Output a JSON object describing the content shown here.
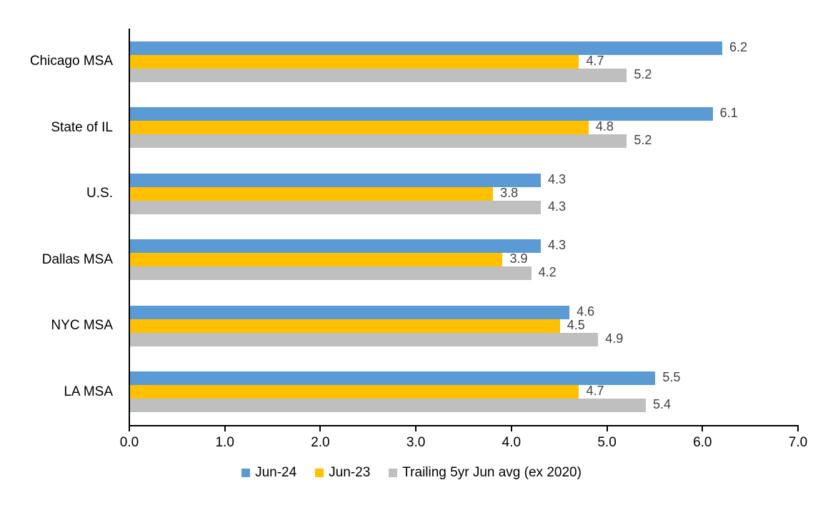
{
  "chart_data": {
    "type": "bar",
    "orientation": "horizontal",
    "title": "",
    "xlabel": "",
    "ylabel": "",
    "categories": [
      "Chicago MSA",
      "State of IL",
      "U.S.",
      "Dallas MSA",
      "NYC MSA",
      "LA MSA"
    ],
    "series": [
      {
        "name": "Jun-24",
        "color": "#5B9BD5",
        "values": [
          6.2,
          6.1,
          4.3,
          4.3,
          4.6,
          5.5
        ]
      },
      {
        "name": "Jun-23",
        "color": "#FFC000",
        "values": [
          4.7,
          4.8,
          3.8,
          3.9,
          4.5,
          4.7
        ]
      },
      {
        "name": "Trailing 5yr Jun avg (ex 2020)",
        "color": "#BFBFBF",
        "values": [
          5.2,
          5.2,
          4.3,
          4.2,
          4.9,
          5.4
        ]
      }
    ],
    "xlim": [
      0.0,
      7.0
    ],
    "x_ticks": [
      "0.0",
      "1.0",
      "2.0",
      "3.0",
      "4.0",
      "5.0",
      "6.0",
      "7.0"
    ],
    "data_labels": true,
    "data_label_decimals": 1,
    "grid": false,
    "legend_position": "bottom",
    "colors": {
      "axis": "#000000",
      "category_text": "#000000",
      "tick_text": "#000000",
      "data_label_text": "#404040",
      "background": "#FFFFFF"
    }
  }
}
